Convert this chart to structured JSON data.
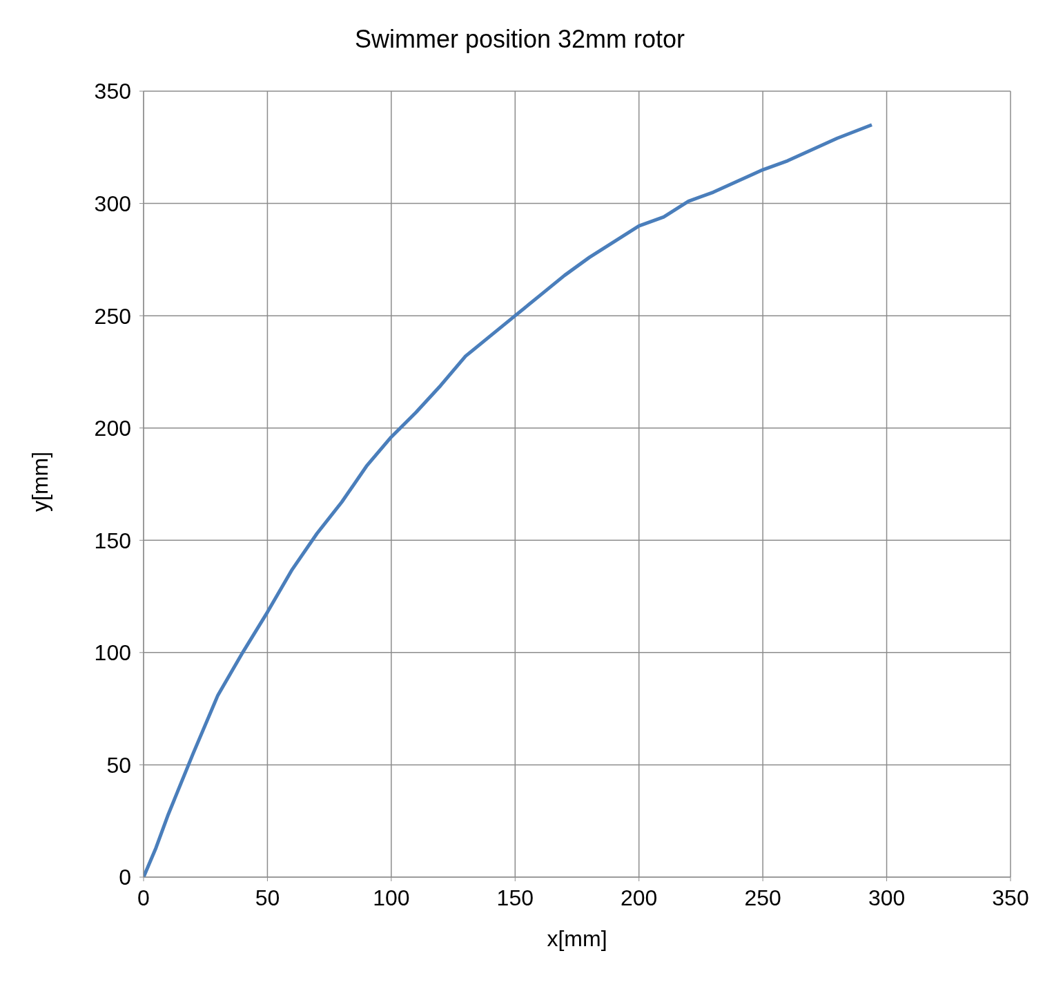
{
  "chart_data": {
    "type": "line",
    "title": "Swimmer position 32mm rotor",
    "xlabel": "x[mm]",
    "ylabel": "y[mm]",
    "x": [
      0,
      5,
      10,
      20,
      30,
      40,
      50,
      60,
      70,
      80,
      90,
      100,
      110,
      120,
      130,
      140,
      150,
      160,
      170,
      180,
      190,
      200,
      210,
      220,
      230,
      240,
      250,
      260,
      270,
      280,
      294
    ],
    "series": [
      {
        "color": "#4a7ebb",
        "values": [
          0,
          13,
          28,
          55,
          81,
          100,
          118,
          137,
          153,
          167,
          183,
          196,
          207,
          219,
          232,
          241,
          250,
          259,
          268,
          276,
          283,
          290,
          294,
          301,
          305,
          310,
          315,
          319,
          324,
          329,
          335
        ]
      }
    ],
    "xlim": [
      0,
      350
    ],
    "xticks": [
      0,
      50,
      100,
      150,
      200,
      250,
      300,
      350
    ],
    "ylim": [
      0,
      350
    ],
    "yticks": [
      0,
      50,
      100,
      150,
      200,
      250,
      300,
      350
    ],
    "grid": true,
    "legend": false,
    "marker": "none",
    "line_style": "solid"
  }
}
